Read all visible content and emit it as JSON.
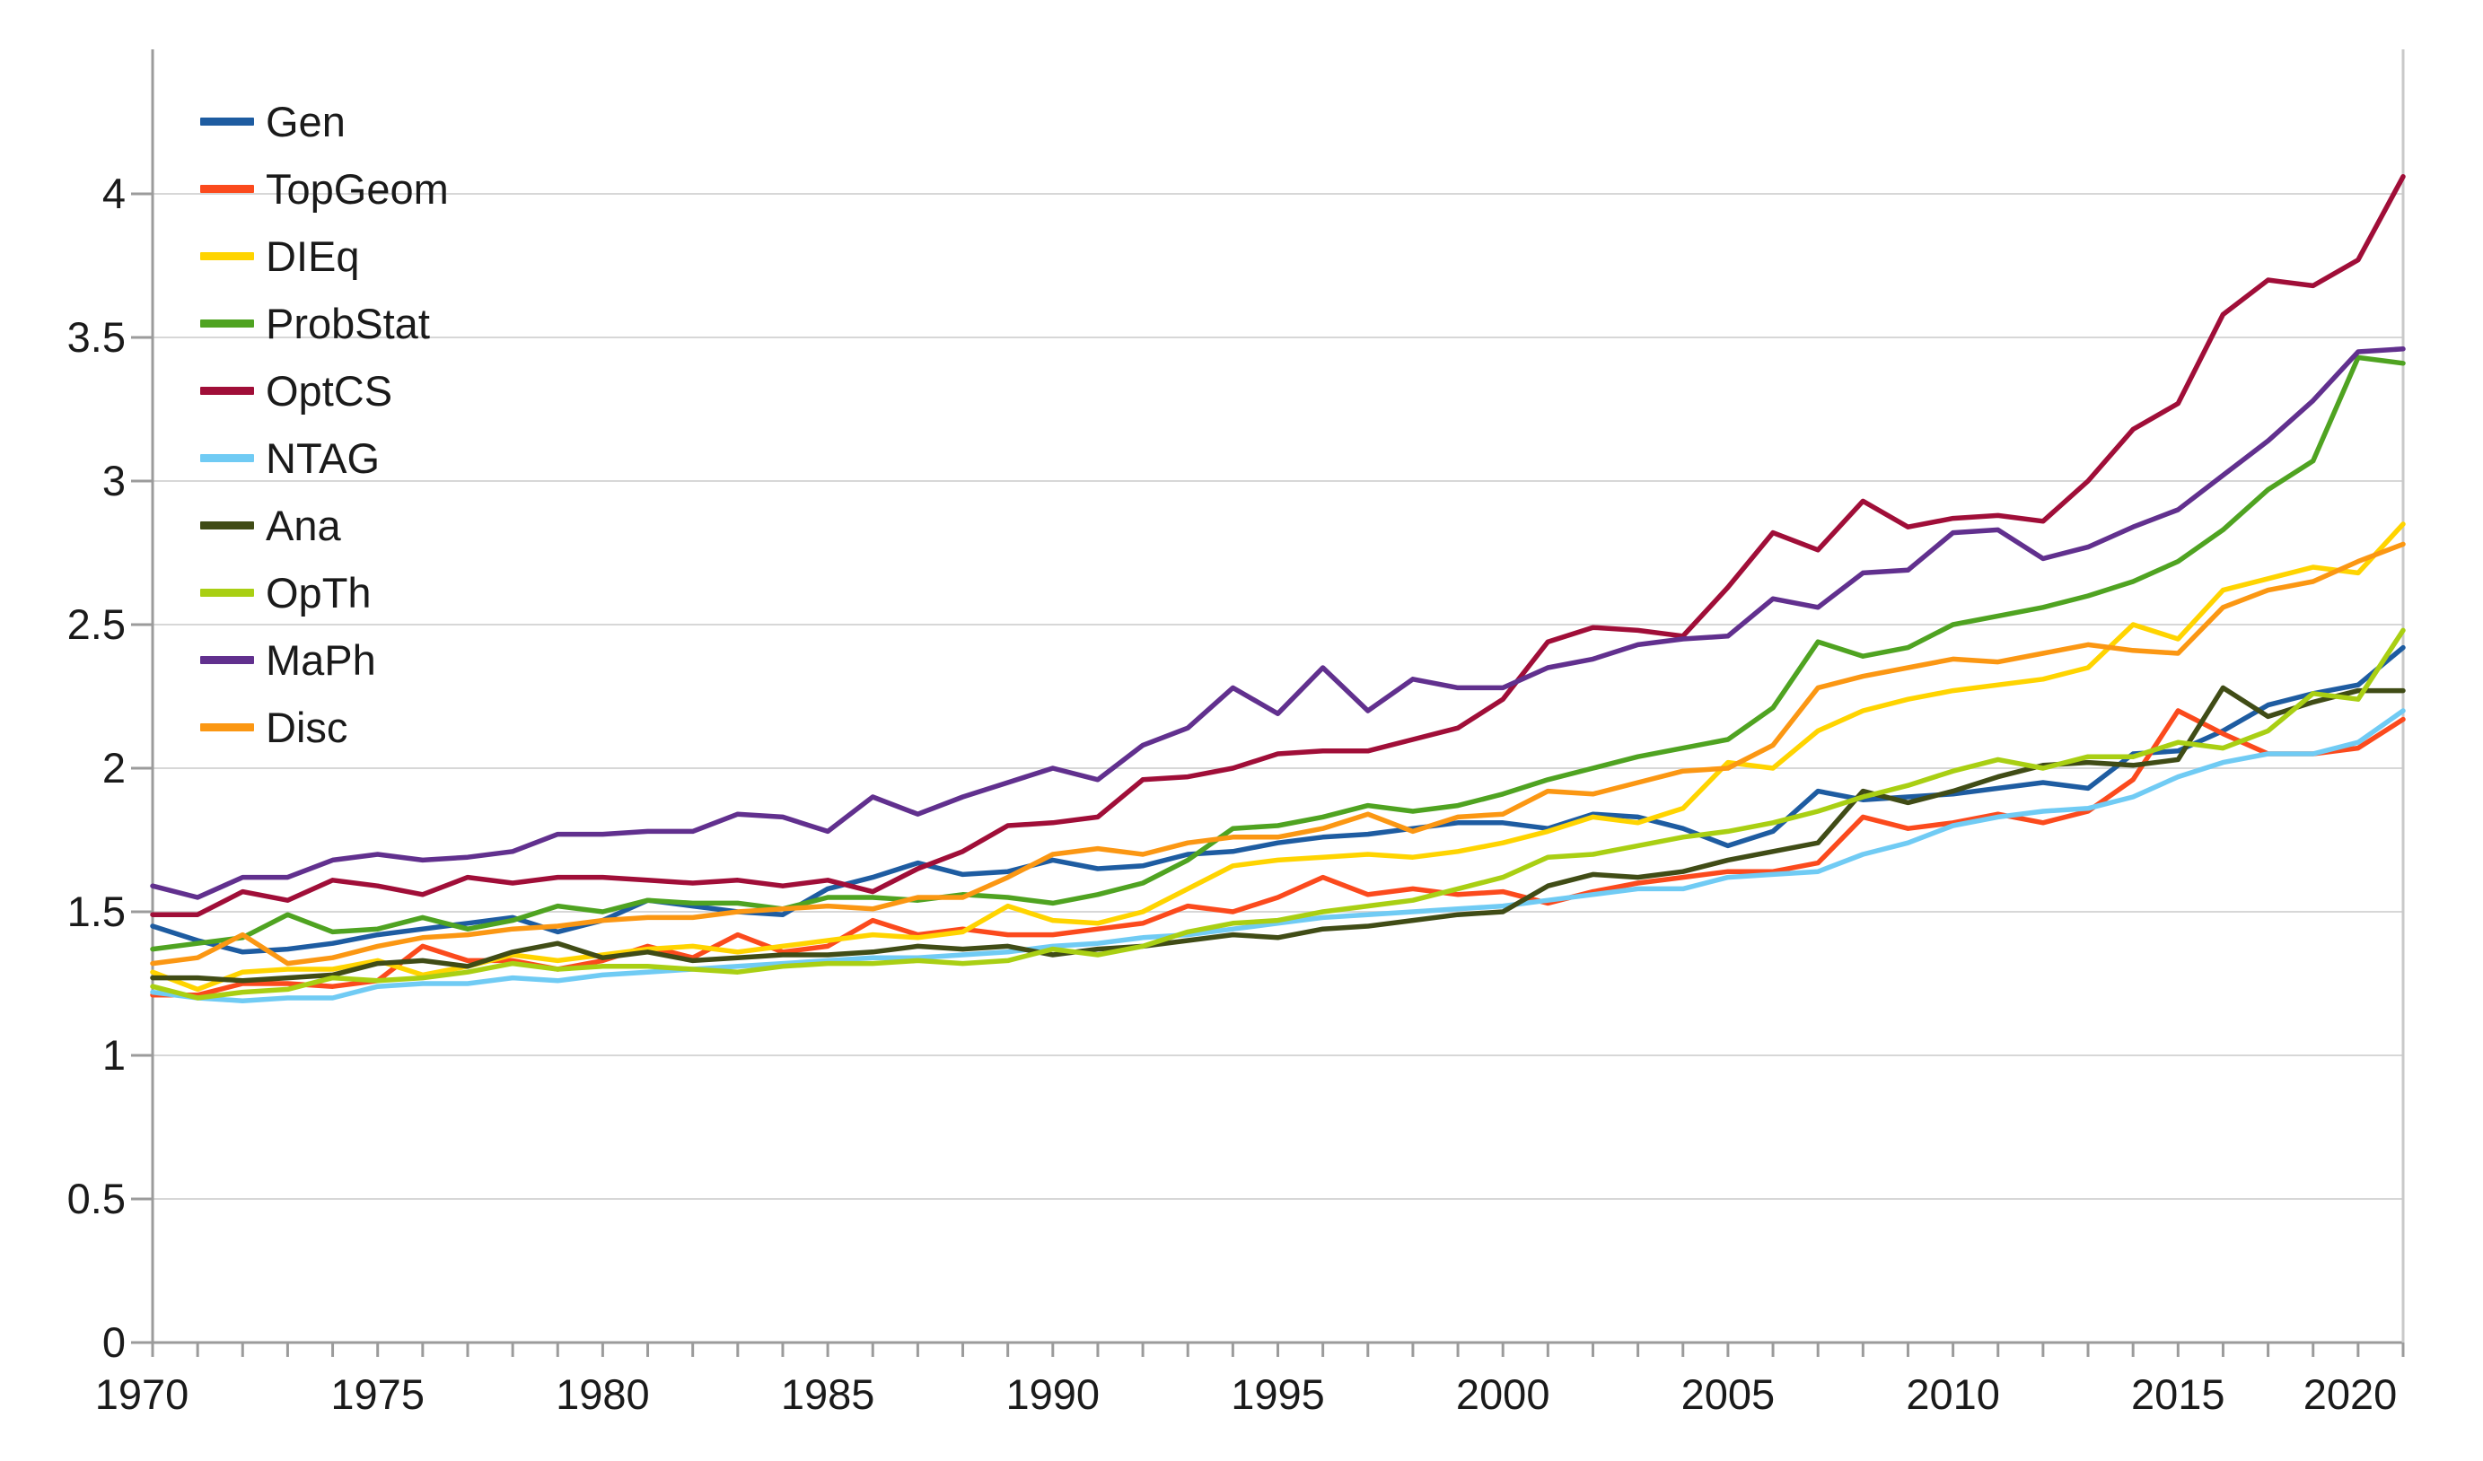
{
  "chart_data": {
    "type": "line",
    "title": "",
    "xlabel": "",
    "ylabel": "",
    "xlim": [
      1970,
      2020
    ],
    "ylim": [
      0,
      4.35
    ],
    "grid": "horizontal-only",
    "legend_position": "top-left-inside",
    "x": [
      1970,
      1971,
      1972,
      1973,
      1974,
      1975,
      1976,
      1977,
      1978,
      1979,
      1980,
      1981,
      1982,
      1983,
      1984,
      1985,
      1986,
      1987,
      1988,
      1989,
      1990,
      1991,
      1992,
      1993,
      1994,
      1995,
      1996,
      1997,
      1998,
      1999,
      2000,
      2001,
      2002,
      2003,
      2004,
      2005,
      2006,
      2007,
      2008,
      2009,
      2010,
      2011,
      2012,
      2013,
      2014,
      2015,
      2016,
      2017,
      2018,
      2019,
      2020
    ],
    "x_tick_labels": [
      "1970",
      "1975",
      "1980",
      "1985",
      "1990",
      "1995",
      "2000",
      "2005",
      "2010",
      "2015",
      "2020"
    ],
    "x_tick_values": [
      1970,
      1975,
      1980,
      1985,
      1990,
      1995,
      2000,
      2005,
      2010,
      2015,
      2020
    ],
    "y_tick_labels": [
      "0",
      "0.5",
      "1",
      "1.5",
      "2",
      "2.5",
      "3",
      "3.5",
      "4"
    ],
    "y_tick_values": [
      0,
      0.5,
      1,
      1.5,
      2,
      2.5,
      3,
      3.5,
      4
    ],
    "colors": {
      "grid": "#d7d7d7",
      "axis": "#9b9b9b",
      "plot_right_border": "#c9c9c9",
      "text": "#1a1a1a"
    },
    "series": [
      {
        "name": "Gen",
        "color": "#1e5ca1",
        "values": [
          1.45,
          1.4,
          1.36,
          1.37,
          1.39,
          1.42,
          1.44,
          1.46,
          1.48,
          1.43,
          1.47,
          1.54,
          1.52,
          1.5,
          1.49,
          1.58,
          1.62,
          1.67,
          1.63,
          1.64,
          1.68,
          1.65,
          1.66,
          1.7,
          1.71,
          1.74,
          1.76,
          1.77,
          1.79,
          1.81,
          1.81,
          1.79,
          1.84,
          1.83,
          1.79,
          1.73,
          1.78,
          1.92,
          1.89,
          1.9,
          1.91,
          1.93,
          1.95,
          1.93,
          2.05,
          2.06,
          2.13,
          2.22,
          2.26,
          2.29,
          2.42
        ]
      },
      {
        "name": "TopGeom",
        "color": "#fb4a1d",
        "values": [
          1.21,
          1.21,
          1.25,
          1.25,
          1.24,
          1.26,
          1.38,
          1.33,
          1.33,
          1.3,
          1.33,
          1.38,
          1.34,
          1.42,
          1.36,
          1.38,
          1.47,
          1.42,
          1.44,
          1.42,
          1.42,
          1.44,
          1.46,
          1.52,
          1.5,
          1.55,
          1.62,
          1.56,
          1.58,
          1.56,
          1.57,
          1.53,
          1.57,
          1.6,
          1.62,
          1.64,
          1.64,
          1.67,
          1.83,
          1.79,
          1.81,
          1.84,
          1.81,
          1.85,
          1.96,
          2.2,
          2.12,
          2.05,
          2.05,
          2.07,
          2.17
        ]
      },
      {
        "name": "DIEq",
        "color": "#ffd400",
        "values": [
          1.29,
          1.23,
          1.29,
          1.3,
          1.3,
          1.33,
          1.28,
          1.31,
          1.35,
          1.33,
          1.35,
          1.37,
          1.38,
          1.36,
          1.38,
          1.4,
          1.42,
          1.41,
          1.43,
          1.52,
          1.47,
          1.46,
          1.5,
          1.58,
          1.66,
          1.68,
          1.69,
          1.7,
          1.69,
          1.71,
          1.74,
          1.78,
          1.83,
          1.81,
          1.86,
          2.02,
          2.0,
          2.13,
          2.2,
          2.24,
          2.27,
          2.29,
          2.31,
          2.35,
          2.5,
          2.45,
          2.62,
          2.66,
          2.7,
          2.68,
          2.85
        ]
      },
      {
        "name": "ProbStat",
        "color": "#4fa321",
        "values": [
          1.37,
          1.39,
          1.41,
          1.49,
          1.43,
          1.44,
          1.48,
          1.44,
          1.47,
          1.52,
          1.5,
          1.54,
          1.53,
          1.53,
          1.51,
          1.55,
          1.55,
          1.54,
          1.56,
          1.55,
          1.53,
          1.56,
          1.6,
          1.68,
          1.79,
          1.8,
          1.83,
          1.87,
          1.85,
          1.87,
          1.91,
          1.96,
          2.0,
          2.04,
          2.07,
          2.1,
          2.21,
          2.44,
          2.39,
          2.42,
          2.5,
          2.53,
          2.56,
          2.6,
          2.65,
          2.72,
          2.83,
          2.97,
          3.07,
          3.43,
          3.41
        ]
      },
      {
        "name": "OptCS",
        "color": "#a00e38",
        "values": [
          1.49,
          1.49,
          1.57,
          1.54,
          1.61,
          1.59,
          1.56,
          1.62,
          1.6,
          1.62,
          1.62,
          1.61,
          1.6,
          1.61,
          1.59,
          1.61,
          1.57,
          1.65,
          1.71,
          1.8,
          1.81,
          1.83,
          1.96,
          1.97,
          2.0,
          2.05,
          2.06,
          2.06,
          2.1,
          2.14,
          2.24,
          2.44,
          2.49,
          2.48,
          2.46,
          2.63,
          2.82,
          2.76,
          2.93,
          2.84,
          2.87,
          2.88,
          2.86,
          3.0,
          3.18,
          3.27,
          3.58,
          3.7,
          3.68,
          3.77,
          4.06
        ]
      },
      {
        "name": "NTAG",
        "color": "#70cbf4",
        "values": [
          1.22,
          1.2,
          1.19,
          1.2,
          1.2,
          1.24,
          1.25,
          1.25,
          1.27,
          1.26,
          1.28,
          1.29,
          1.3,
          1.31,
          1.32,
          1.33,
          1.34,
          1.34,
          1.35,
          1.36,
          1.38,
          1.39,
          1.41,
          1.42,
          1.44,
          1.46,
          1.48,
          1.49,
          1.5,
          1.51,
          1.52,
          1.54,
          1.56,
          1.58,
          1.58,
          1.62,
          1.63,
          1.64,
          1.7,
          1.74,
          1.8,
          1.83,
          1.85,
          1.86,
          1.9,
          1.97,
          2.02,
          2.05,
          2.05,
          2.09,
          2.2
        ]
      },
      {
        "name": "Ana",
        "color": "#404c16",
        "values": [
          1.27,
          1.27,
          1.26,
          1.27,
          1.28,
          1.32,
          1.33,
          1.31,
          1.36,
          1.39,
          1.34,
          1.36,
          1.33,
          1.34,
          1.35,
          1.35,
          1.36,
          1.38,
          1.37,
          1.38,
          1.35,
          1.37,
          1.38,
          1.4,
          1.42,
          1.41,
          1.44,
          1.45,
          1.47,
          1.49,
          1.5,
          1.59,
          1.63,
          1.62,
          1.64,
          1.68,
          1.71,
          1.74,
          1.92,
          1.88,
          1.92,
          1.97,
          2.01,
          2.02,
          2.01,
          2.03,
          2.28,
          2.18,
          2.23,
          2.27,
          2.27
        ]
      },
      {
        "name": "OpTh",
        "color": "#a9cf13",
        "values": [
          1.24,
          1.2,
          1.22,
          1.23,
          1.27,
          1.26,
          1.27,
          1.29,
          1.32,
          1.3,
          1.31,
          1.31,
          1.3,
          1.29,
          1.31,
          1.32,
          1.32,
          1.33,
          1.32,
          1.33,
          1.37,
          1.35,
          1.38,
          1.43,
          1.46,
          1.47,
          1.5,
          1.52,
          1.54,
          1.58,
          1.62,
          1.69,
          1.7,
          1.73,
          1.76,
          1.78,
          1.81,
          1.85,
          1.9,
          1.94,
          1.99,
          2.03,
          2.0,
          2.04,
          2.04,
          2.09,
          2.07,
          2.13,
          2.26,
          2.24,
          2.48
        ]
      },
      {
        "name": "MaPh",
        "color": "#61308e",
        "values": [
          1.59,
          1.55,
          1.62,
          1.62,
          1.68,
          1.7,
          1.68,
          1.69,
          1.71,
          1.77,
          1.77,
          1.78,
          1.78,
          1.84,
          1.83,
          1.78,
          1.9,
          1.84,
          1.9,
          1.95,
          2.0,
          1.96,
          2.08,
          2.14,
          2.28,
          2.19,
          2.35,
          2.2,
          2.31,
          2.28,
          2.28,
          2.35,
          2.38,
          2.43,
          2.45,
          2.46,
          2.59,
          2.56,
          2.68,
          2.69,
          2.82,
          2.83,
          2.73,
          2.77,
          2.84,
          2.9,
          3.02,
          3.14,
          3.28,
          3.45,
          3.46
        ]
      },
      {
        "name": "Disc",
        "color": "#fb9713",
        "values": [
          1.32,
          1.34,
          1.42,
          1.32,
          1.34,
          1.38,
          1.41,
          1.42,
          1.44,
          1.45,
          1.47,
          1.48,
          1.48,
          1.5,
          1.51,
          1.52,
          1.51,
          1.55,
          1.55,
          1.62,
          1.7,
          1.72,
          1.7,
          1.74,
          1.76,
          1.76,
          1.79,
          1.84,
          1.78,
          1.83,
          1.84,
          1.92,
          1.91,
          1.95,
          1.99,
          2.0,
          2.08,
          2.28,
          2.32,
          2.35,
          2.38,
          2.37,
          2.4,
          2.43,
          2.41,
          2.4,
          2.56,
          2.62,
          2.65,
          2.72,
          2.78
        ]
      }
    ]
  }
}
